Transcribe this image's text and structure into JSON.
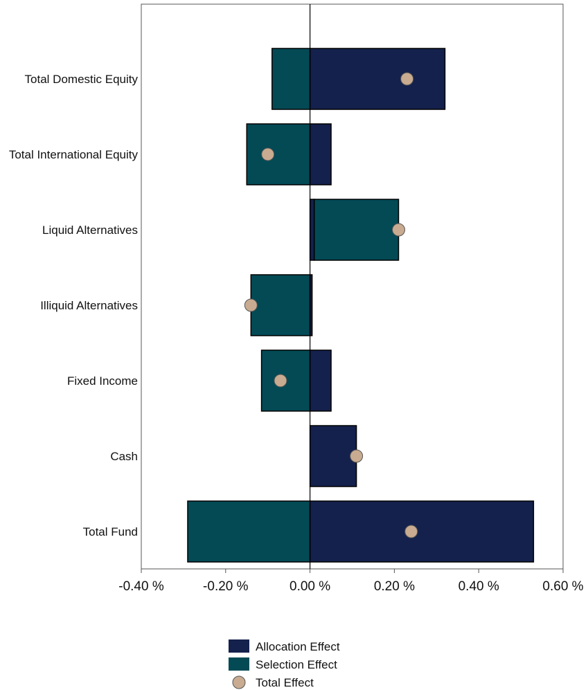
{
  "chart_data": {
    "type": "bar",
    "orientation": "horizontal",
    "stacking": "diverging",
    "categories": [
      "Total Domestic Equity",
      "Total International Equity",
      "Liquid Alternatives",
      "Illiquid Alternatives",
      "Fixed Income",
      "Cash",
      "Total Fund"
    ],
    "series": [
      {
        "name": "Allocation Effect",
        "kind": "bar",
        "color": "#14214d",
        "values": [
          0.32,
          0.05,
          0.01,
          0.005,
          0.05,
          0.11,
          0.53
        ]
      },
      {
        "name": "Selection Effect",
        "kind": "bar",
        "color": "#034a55",
        "values": [
          -0.09,
          -0.15,
          0.2,
          -0.14,
          -0.115,
          0.0,
          -0.29
        ]
      },
      {
        "name": "Total Effect",
        "kind": "marker",
        "color": "#c8ab90",
        "values": [
          0.23,
          -0.1,
          0.21,
          -0.14,
          -0.07,
          0.11,
          0.24
        ]
      }
    ],
    "xlim": [
      -0.4,
      0.6
    ],
    "xticks": [
      -0.4,
      -0.2,
      0.0,
      0.2,
      0.4,
      0.6
    ],
    "xtick_labels": [
      "-0.40 %",
      "-0.20 %",
      "0.00 %",
      "0.20 %",
      "0.40 %",
      "0.60 %"
    ],
    "grid": false,
    "legend_position": "bottom"
  }
}
